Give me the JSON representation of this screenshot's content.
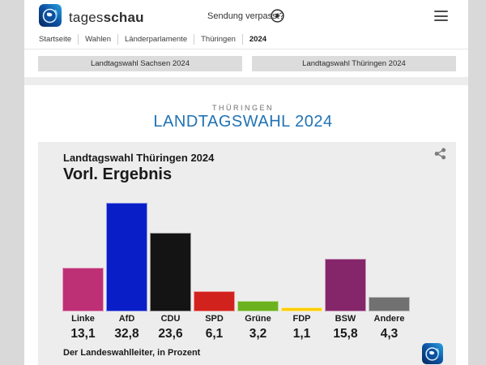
{
  "header": {
    "brand_regular": "tages",
    "brand_bold": "schau",
    "sendung_verpasst": "Sendung verpasst?",
    "breadcrumb": [
      "Startseite",
      "Wahlen",
      "Länderparlamente",
      "Thüringen",
      "2024"
    ]
  },
  "tabs": [
    {
      "label": "Landtagswahl Sachsen 2024"
    },
    {
      "label": "Landtagswahl Thüringen 2024"
    }
  ],
  "page": {
    "kicker": "THÜRINGEN",
    "title": "LANDTAGSWAHL 2024",
    "title_color": "#2173b4"
  },
  "chart_card": {
    "subtitle": "Landtagswahl Thüringen 2024",
    "title": "Vorl. Ergebnis",
    "source": "Der Landeswahlleiter, in Prozent"
  },
  "chart_data": {
    "type": "bar",
    "title": "Vorl. Ergebnis",
    "subtitle": "Landtagswahl Thüringen 2024",
    "categories": [
      "Linke",
      "AfD",
      "CDU",
      "SPD",
      "Grüne",
      "FDP",
      "BSW",
      "Andere"
    ],
    "values": [
      13.1,
      32.8,
      23.6,
      6.1,
      3.2,
      1.1,
      15.8,
      4.3
    ],
    "value_labels": [
      "13,1",
      "32,8",
      "23,6",
      "6,1",
      "3,2",
      "1,1",
      "15,8",
      "4,3"
    ],
    "colors": [
      "#be3075",
      "#0a1ec8",
      "#141414",
      "#d2221e",
      "#6cb21e",
      "#fccc00",
      "#85266b",
      "#717171"
    ],
    "unit": "Prozent",
    "source": "Der Landeswahlleiter, in Prozent",
    "ylim": [
      0,
      35
    ],
    "grid": false,
    "legend": false
  }
}
